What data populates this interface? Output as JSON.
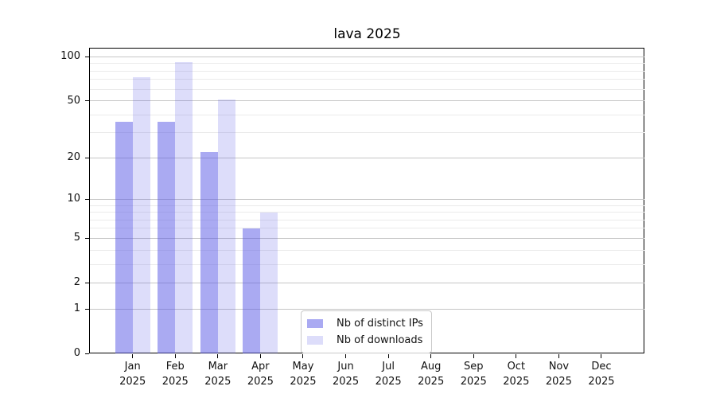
{
  "chart_data": {
    "type": "bar",
    "title": "lava 2025",
    "categories": [
      "Jan",
      "Feb",
      "Mar",
      "Apr",
      "May",
      "Jun",
      "Jul",
      "Aug",
      "Sep",
      "Oct",
      "Nov",
      "Dec"
    ],
    "x_year_label": "2025",
    "series": [
      {
        "name": "Nb of distinct IPs",
        "color": "rgba(85,85,229,0.5)",
        "values": [
          36,
          36,
          22,
          6,
          0,
          0,
          0,
          0,
          0,
          0,
          0,
          0
        ]
      },
      {
        "name": "Nb of downloads",
        "color": "rgba(85,85,229,0.2)",
        "values": [
          73,
          92,
          51,
          8,
          0,
          0,
          0,
          0,
          0,
          0,
          0,
          0
        ]
      }
    ],
    "yscale": "log1p",
    "ylim": [
      0,
      114
    ],
    "yticks": [
      0,
      1,
      2,
      5,
      10,
      20,
      50,
      100
    ],
    "ytick_labels": [
      "0",
      "1",
      "2",
      "5",
      "10",
      "20",
      "50",
      "100"
    ],
    "minor_yticks": [
      3,
      4,
      6,
      7,
      8,
      9,
      30,
      40,
      60,
      70,
      80,
      90
    ],
    "grid": "horizontal major+minor",
    "legend_position": "lower center inside plot",
    "colors": {
      "major_grid": "#c6c6c6",
      "minor_grid": "#eaeaea",
      "spine": "#000000",
      "text": "#111111",
      "background": "#ffffff"
    }
  }
}
